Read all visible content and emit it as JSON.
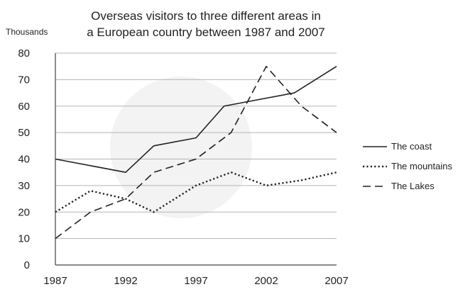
{
  "chart_data": {
    "type": "line",
    "title_lines": [
      "Overseas visitors to three different areas in",
      "a European country between 1987 and 2007"
    ],
    "ylabel": "Thousands",
    "ylim": [
      0,
      80
    ],
    "yticks": [
      0,
      10,
      20,
      30,
      40,
      50,
      60,
      70,
      80
    ],
    "xlim": [
      1987,
      2007
    ],
    "xticks": [
      1987,
      1992,
      1997,
      2002,
      2007
    ],
    "grid": true,
    "legend_position": "right",
    "series": [
      {
        "name": "The coast",
        "style": "solid",
        "color": "#222222",
        "x": [
          1987,
          1992,
          1994,
          1997,
          1999,
          2004,
          2007
        ],
        "values": [
          40,
          35,
          45,
          48,
          60,
          65,
          75
        ]
      },
      {
        "name": "The mountains",
        "style": "dotted",
        "color": "#222222",
        "x": [
          1987,
          1989.5,
          1992,
          1994,
          1997,
          1999.5,
          2002,
          2004.5,
          2007
        ],
        "values": [
          20,
          28,
          25,
          20,
          30,
          35,
          30,
          32,
          35
        ]
      },
      {
        "name": "The Lakes",
        "style": "dashed",
        "color": "#222222",
        "x": [
          1987,
          1989.5,
          1992,
          1994,
          1997,
          1999.5,
          2002,
          2004.5,
          2007
        ],
        "values": [
          10,
          20,
          25,
          35,
          40,
          50,
          75,
          60,
          50
        ]
      }
    ]
  }
}
